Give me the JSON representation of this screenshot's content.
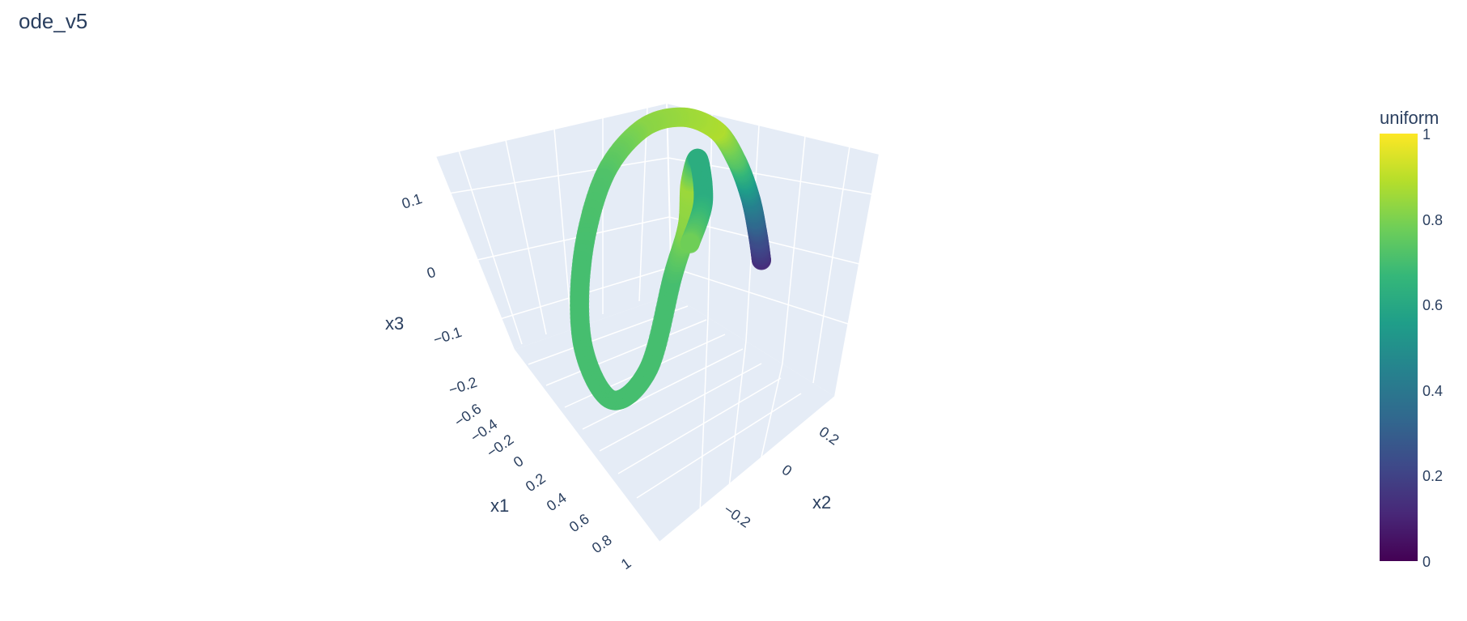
{
  "title": "ode_v5",
  "chart_data": {
    "type": "scatter3d",
    "title": "ode_v5",
    "axes": {
      "x1": {
        "label": "x1",
        "range": [
          -0.6,
          1
        ],
        "ticks": [
          "−0.6",
          "−0.4",
          "−0.2",
          "0",
          "0.2",
          "0.4",
          "0.6",
          "0.8",
          "1"
        ]
      },
      "x2": {
        "label": "x2",
        "range": [
          -0.3,
          0.3
        ],
        "ticks": [
          "−0.2",
          "0",
          "0.2"
        ]
      },
      "x3": {
        "label": "x3",
        "range": [
          -0.2,
          0.15
        ],
        "ticks": [
          "−0.2",
          "−0.1",
          "0",
          "0.1"
        ]
      }
    },
    "colorbar": {
      "title": "uniform",
      "colorscale": "Viridis",
      "range": [
        0,
        1
      ],
      "ticks": [
        "0",
        "0.2",
        "0.4",
        "0.6",
        "0.8",
        "1"
      ]
    },
    "background_color": "#e5ecf6",
    "grid": true,
    "trajectory": [
      {
        "x1": 0.9,
        "x2": -0.05,
        "x3": 0.0,
        "c": 0.12
      },
      {
        "x1": 0.85,
        "x2": -0.04,
        "x3": 0.03,
        "c": 0.25
      },
      {
        "x1": 0.75,
        "x2": -0.02,
        "x3": 0.07,
        "c": 0.45
      },
      {
        "x1": 0.6,
        "x2": 0.0,
        "x3": 0.11,
        "c": 0.72
      },
      {
        "x1": 0.4,
        "x2": 0.02,
        "x3": 0.14,
        "c": 0.88
      },
      {
        "x1": 0.15,
        "x2": 0.01,
        "x3": 0.15,
        "c": 0.85
      },
      {
        "x1": -0.1,
        "x2": -0.02,
        "x3": 0.13,
        "c": 0.82
      },
      {
        "x1": -0.3,
        "x2": -0.06,
        "x3": 0.07,
        "c": 0.72
      },
      {
        "x1": -0.4,
        "x2": -0.09,
        "x3": -0.03,
        "c": 0.7
      },
      {
        "x1": -0.35,
        "x2": -0.11,
        "x3": -0.13,
        "c": 0.7
      },
      {
        "x1": -0.15,
        "x2": -0.1,
        "x3": -0.19,
        "c": 0.7
      },
      {
        "x1": 0.05,
        "x2": -0.06,
        "x3": -0.15,
        "c": 0.7
      },
      {
        "x1": 0.15,
        "x2": -0.02,
        "x3": -0.04,
        "c": 0.7
      },
      {
        "x1": 0.2,
        "x2": 0.01,
        "x3": 0.02,
        "c": 0.82
      },
      {
        "x1": 0.18,
        "x2": 0.03,
        "x3": 0.07,
        "c": 0.85
      },
      {
        "x1": 0.22,
        "x2": 0.04,
        "x3": 0.1,
        "c": 0.62
      },
      {
        "x1": 0.28,
        "x2": 0.03,
        "x3": 0.05,
        "c": 0.62
      },
      {
        "x1": 0.22,
        "x2": 0.01,
        "x3": 0.0,
        "c": 0.78
      }
    ]
  }
}
